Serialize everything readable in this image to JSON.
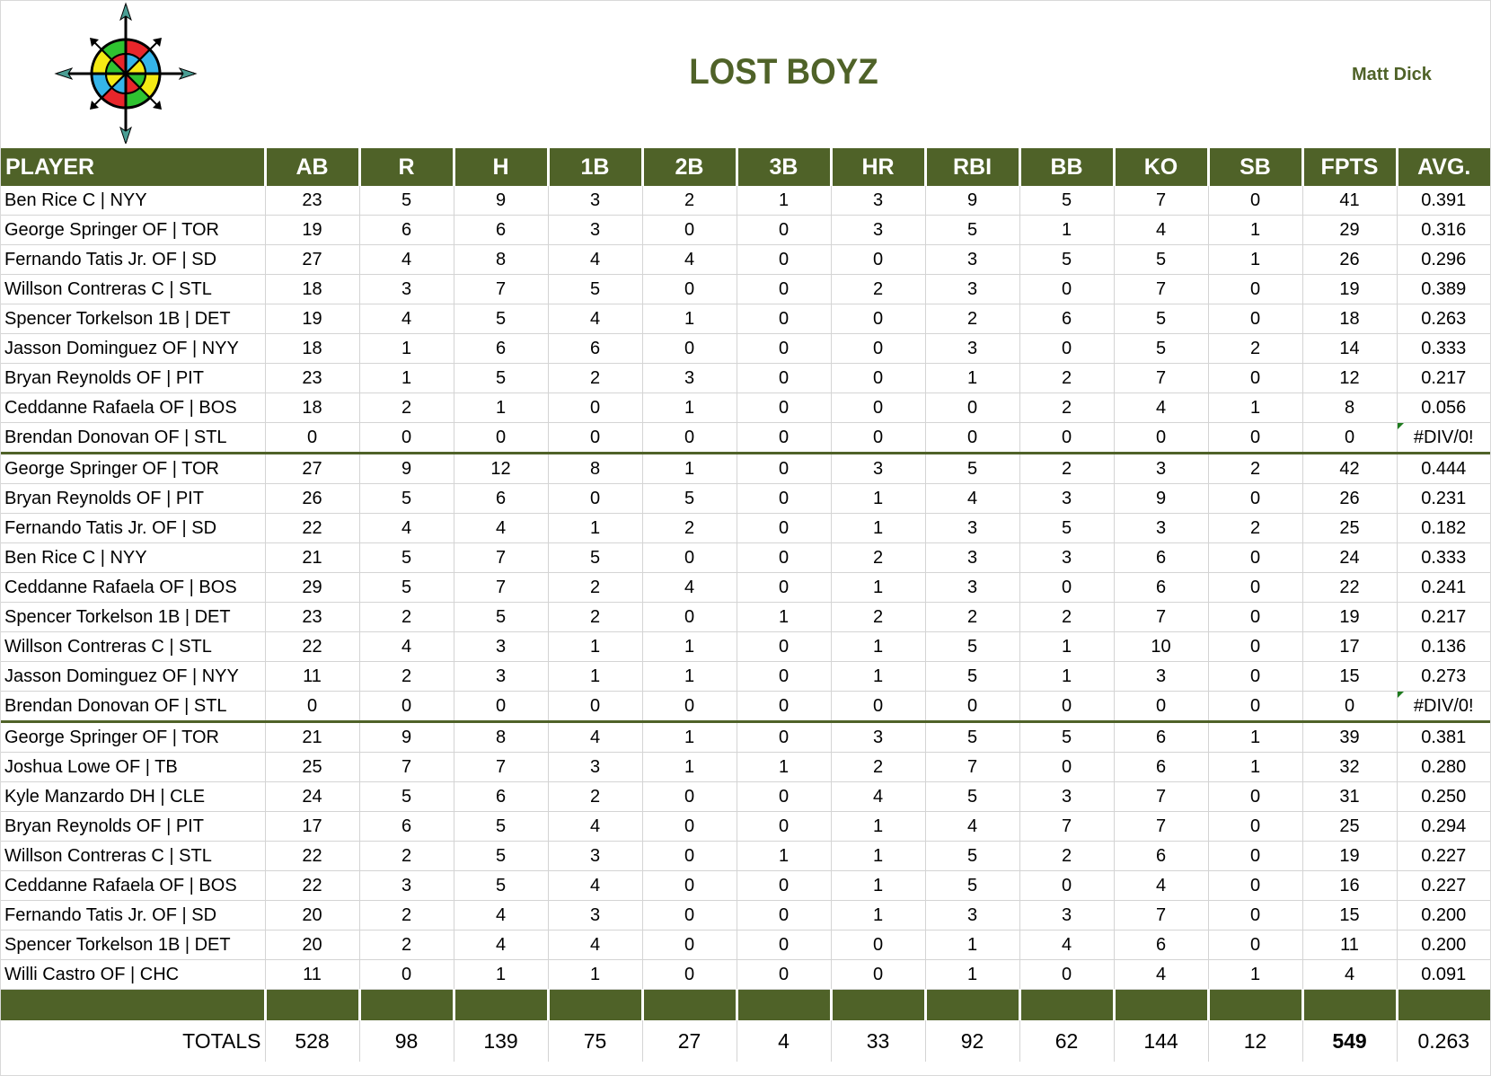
{
  "header": {
    "team_name": "LOST BOYZ",
    "owner_name": "Matt Dick",
    "logo": "compass-rose-icon"
  },
  "colors": {
    "accent_green": "#4f6228",
    "grid_line": "#d4d4d4",
    "error_flag": "#1e7b1e"
  },
  "table": {
    "columns": [
      "PLAYER",
      "AB",
      "R",
      "H",
      "1B",
      "2B",
      "3B",
      "HR",
      "RBI",
      "BB",
      "KO",
      "SB",
      "FPTS",
      "AVG."
    ],
    "sections": [
      {
        "rows": [
          {
            "player": "Ben Rice C | NYY",
            "ab": "23",
            "r": "5",
            "h": "9",
            "b1": "3",
            "b2": "2",
            "b3": "1",
            "hr": "3",
            "rbi": "9",
            "bb": "5",
            "ko": "7",
            "sb": "0",
            "fpts": "41",
            "avg": "0.391"
          },
          {
            "player": "George Springer OF | TOR",
            "ab": "19",
            "r": "6",
            "h": "6",
            "b1": "3",
            "b2": "0",
            "b3": "0",
            "hr": "3",
            "rbi": "5",
            "bb": "1",
            "ko": "4",
            "sb": "1",
            "fpts": "29",
            "avg": "0.316"
          },
          {
            "player": "Fernando Tatis Jr. OF | SD",
            "ab": "27",
            "r": "4",
            "h": "8",
            "b1": "4",
            "b2": "4",
            "b3": "0",
            "hr": "0",
            "rbi": "3",
            "bb": "5",
            "ko": "5",
            "sb": "1",
            "fpts": "26",
            "avg": "0.296"
          },
          {
            "player": "Willson Contreras C | STL",
            "ab": "18",
            "r": "3",
            "h": "7",
            "b1": "5",
            "b2": "0",
            "b3": "0",
            "hr": "2",
            "rbi": "3",
            "bb": "0",
            "ko": "7",
            "sb": "0",
            "fpts": "19",
            "avg": "0.389"
          },
          {
            "player": "Spencer Torkelson 1B | DET",
            "ab": "19",
            "r": "4",
            "h": "5",
            "b1": "4",
            "b2": "1",
            "b3": "0",
            "hr": "0",
            "rbi": "2",
            "bb": "6",
            "ko": "5",
            "sb": "0",
            "fpts": "18",
            "avg": "0.263"
          },
          {
            "player": "Jasson Dominguez OF | NYY",
            "ab": "18",
            "r": "1",
            "h": "6",
            "b1": "6",
            "b2": "0",
            "b3": "0",
            "hr": "0",
            "rbi": "3",
            "bb": "0",
            "ko": "5",
            "sb": "2",
            "fpts": "14",
            "avg": "0.333"
          },
          {
            "player": "Bryan Reynolds OF | PIT",
            "ab": "23",
            "r": "1",
            "h": "5",
            "b1": "2",
            "b2": "3",
            "b3": "0",
            "hr": "0",
            "rbi": "1",
            "bb": "2",
            "ko": "7",
            "sb": "0",
            "fpts": "12",
            "avg": "0.217"
          },
          {
            "player": "Ceddanne Rafaela OF | BOS",
            "ab": "18",
            "r": "2",
            "h": "1",
            "b1": "0",
            "b2": "1",
            "b3": "0",
            "hr": "0",
            "rbi": "0",
            "bb": "2",
            "ko": "4",
            "sb": "1",
            "fpts": "8",
            "avg": "0.056"
          },
          {
            "player": "Brendan Donovan OF | STL",
            "ab": "0",
            "r": "0",
            "h": "0",
            "b1": "0",
            "b2": "0",
            "b3": "0",
            "hr": "0",
            "rbi": "0",
            "bb": "0",
            "ko": "0",
            "sb": "0",
            "fpts": "0",
            "avg": "#DIV/0!"
          }
        ]
      },
      {
        "rows": [
          {
            "player": "George Springer OF | TOR",
            "ab": "27",
            "r": "9",
            "h": "12",
            "b1": "8",
            "b2": "1",
            "b3": "0",
            "hr": "3",
            "rbi": "5",
            "bb": "2",
            "ko": "3",
            "sb": "2",
            "fpts": "42",
            "avg": "0.444"
          },
          {
            "player": "Bryan Reynolds OF | PIT",
            "ab": "26",
            "r": "5",
            "h": "6",
            "b1": "0",
            "b2": "5",
            "b3": "0",
            "hr": "1",
            "rbi": "4",
            "bb": "3",
            "ko": "9",
            "sb": "0",
            "fpts": "26",
            "avg": "0.231"
          },
          {
            "player": "Fernando Tatis Jr. OF | SD",
            "ab": "22",
            "r": "4",
            "h": "4",
            "b1": "1",
            "b2": "2",
            "b3": "0",
            "hr": "1",
            "rbi": "3",
            "bb": "5",
            "ko": "3",
            "sb": "2",
            "fpts": "25",
            "avg": "0.182"
          },
          {
            "player": "Ben Rice C | NYY",
            "ab": "21",
            "r": "5",
            "h": "7",
            "b1": "5",
            "b2": "0",
            "b3": "0",
            "hr": "2",
            "rbi": "3",
            "bb": "3",
            "ko": "6",
            "sb": "0",
            "fpts": "24",
            "avg": "0.333"
          },
          {
            "player": "Ceddanne Rafaela OF | BOS",
            "ab": "29",
            "r": "5",
            "h": "7",
            "b1": "2",
            "b2": "4",
            "b3": "0",
            "hr": "1",
            "rbi": "3",
            "bb": "0",
            "ko": "6",
            "sb": "0",
            "fpts": "22",
            "avg": "0.241"
          },
          {
            "player": "Spencer Torkelson 1B | DET",
            "ab": "23",
            "r": "2",
            "h": "5",
            "b1": "2",
            "b2": "0",
            "b3": "1",
            "hr": "2",
            "rbi": "2",
            "bb": "2",
            "ko": "7",
            "sb": "0",
            "fpts": "19",
            "avg": "0.217"
          },
          {
            "player": "Willson Contreras C | STL",
            "ab": "22",
            "r": "4",
            "h": "3",
            "b1": "1",
            "b2": "1",
            "b3": "0",
            "hr": "1",
            "rbi": "5",
            "bb": "1",
            "ko": "10",
            "sb": "0",
            "fpts": "17",
            "avg": "0.136"
          },
          {
            "player": "Jasson Dominguez OF | NYY",
            "ab": "11",
            "r": "2",
            "h": "3",
            "b1": "1",
            "b2": "1",
            "b3": "0",
            "hr": "1",
            "rbi": "5",
            "bb": "1",
            "ko": "3",
            "sb": "0",
            "fpts": "15",
            "avg": "0.273"
          },
          {
            "player": "Brendan Donovan OF | STL",
            "ab": "0",
            "r": "0",
            "h": "0",
            "b1": "0",
            "b2": "0",
            "b3": "0",
            "hr": "0",
            "rbi": "0",
            "bb": "0",
            "ko": "0",
            "sb": "0",
            "fpts": "0",
            "avg": "#DIV/0!"
          }
        ]
      },
      {
        "rows": [
          {
            "player": "George Springer OF | TOR",
            "ab": "21",
            "r": "9",
            "h": "8",
            "b1": "4",
            "b2": "1",
            "b3": "0",
            "hr": "3",
            "rbi": "5",
            "bb": "5",
            "ko": "6",
            "sb": "1",
            "fpts": "39",
            "avg": "0.381"
          },
          {
            "player": "Joshua Lowe OF | TB",
            "ab": "25",
            "r": "7",
            "h": "7",
            "b1": "3",
            "b2": "1",
            "b3": "1",
            "hr": "2",
            "rbi": "7",
            "bb": "0",
            "ko": "6",
            "sb": "1",
            "fpts": "32",
            "avg": "0.280"
          },
          {
            "player": "Kyle Manzardo DH | CLE",
            "ab": "24",
            "r": "5",
            "h": "6",
            "b1": "2",
            "b2": "0",
            "b3": "0",
            "hr": "4",
            "rbi": "5",
            "bb": "3",
            "ko": "7",
            "sb": "0",
            "fpts": "31",
            "avg": "0.250"
          },
          {
            "player": "Bryan Reynolds OF | PIT",
            "ab": "17",
            "r": "6",
            "h": "5",
            "b1": "4",
            "b2": "0",
            "b3": "0",
            "hr": "1",
            "rbi": "4",
            "bb": "7",
            "ko": "7",
            "sb": "0",
            "fpts": "25",
            "avg": "0.294"
          },
          {
            "player": "Willson Contreras C | STL",
            "ab": "22",
            "r": "2",
            "h": "5",
            "b1": "3",
            "b2": "0",
            "b3": "1",
            "hr": "1",
            "rbi": "5",
            "bb": "2",
            "ko": "6",
            "sb": "0",
            "fpts": "19",
            "avg": "0.227"
          },
          {
            "player": "Ceddanne Rafaela OF | BOS",
            "ab": "22",
            "r": "3",
            "h": "5",
            "b1": "4",
            "b2": "0",
            "b3": "0",
            "hr": "1",
            "rbi": "5",
            "bb": "0",
            "ko": "4",
            "sb": "0",
            "fpts": "16",
            "avg": "0.227"
          },
          {
            "player": "Fernando Tatis Jr. OF | SD",
            "ab": "20",
            "r": "2",
            "h": "4",
            "b1": "3",
            "b2": "0",
            "b3": "0",
            "hr": "1",
            "rbi": "3",
            "bb": "3",
            "ko": "7",
            "sb": "0",
            "fpts": "15",
            "avg": "0.200"
          },
          {
            "player": "Spencer Torkelson 1B | DET",
            "ab": "20",
            "r": "2",
            "h": "4",
            "b1": "4",
            "b2": "0",
            "b3": "0",
            "hr": "0",
            "rbi": "1",
            "bb": "4",
            "ko": "6",
            "sb": "0",
            "fpts": "11",
            "avg": "0.200"
          },
          {
            "player": "Willi Castro OF | CHC",
            "ab": "11",
            "r": "0",
            "h": "1",
            "b1": "1",
            "b2": "0",
            "b3": "0",
            "hr": "0",
            "rbi": "1",
            "bb": "0",
            "ko": "4",
            "sb": "1",
            "fpts": "4",
            "avg": "0.091"
          }
        ]
      }
    ],
    "totals": {
      "label": "TOTALS",
      "ab": "528",
      "r": "98",
      "h": "139",
      "b1": "75",
      "b2": "27",
      "b3": "4",
      "hr": "33",
      "rbi": "92",
      "bb": "62",
      "ko": "144",
      "sb": "12",
      "fpts": "549",
      "avg": "0.263"
    }
  }
}
